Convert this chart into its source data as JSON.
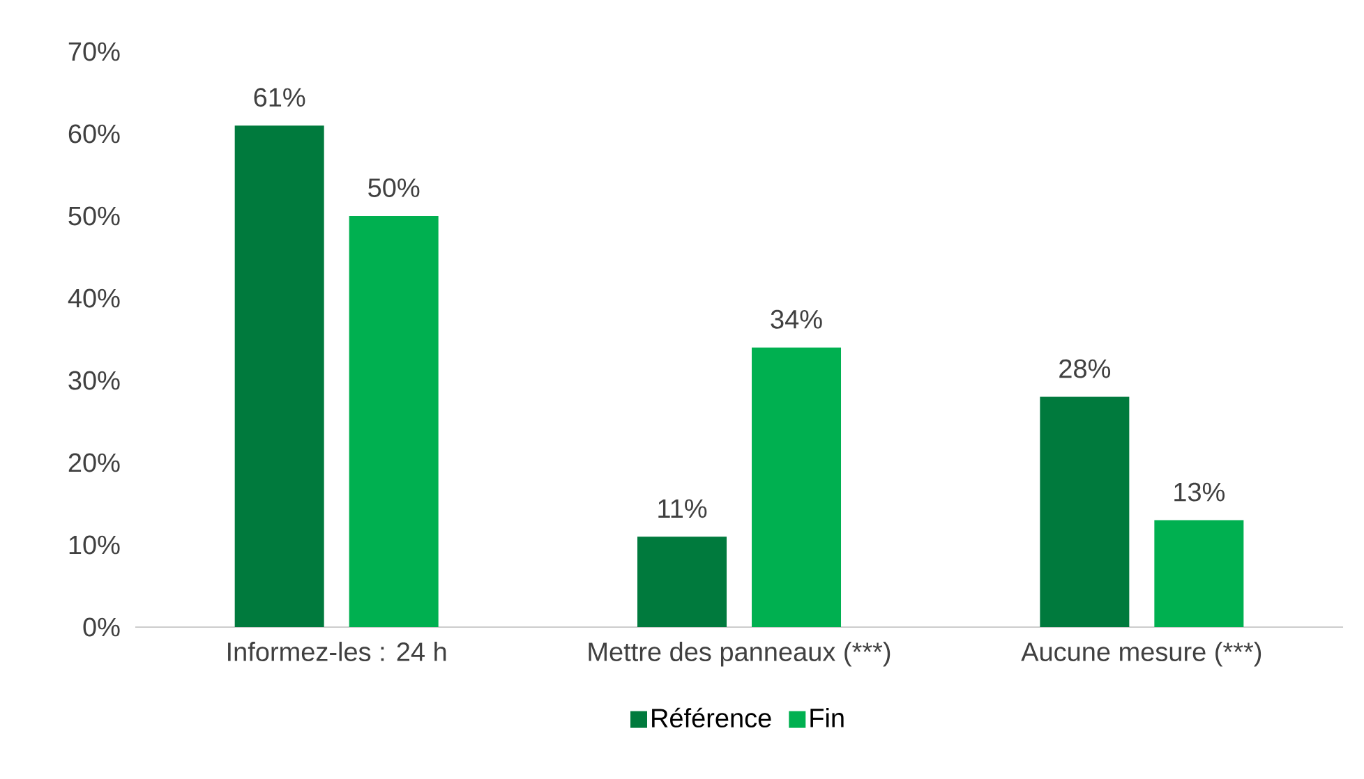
{
  "chart_data": {
    "type": "bar",
    "categories": [
      "Informez-les : 24 h",
      "Mettre des panneaux (***)",
      "Aucune mesure (***)"
    ],
    "series": [
      {
        "name": "Référence",
        "color": "#007a3d",
        "values": [
          61,
          11,
          28
        ],
        "value_labels": [
          "61%",
          "11%",
          "28%"
        ]
      },
      {
        "name": "Fin",
        "color": "#00b050",
        "values": [
          50,
          34,
          13
        ],
        "value_labels": [
          "50%",
          "34%",
          "13%"
        ]
      }
    ],
    "ylim": [
      0,
      70
    ],
    "yticks": [
      {
        "value": 0,
        "label": "0%"
      },
      {
        "value": 10,
        "label": "10%"
      },
      {
        "value": 20,
        "label": "20%"
      },
      {
        "value": 30,
        "label": "30%"
      },
      {
        "value": 40,
        "label": "40%"
      },
      {
        "value": 50,
        "label": "50%"
      },
      {
        "value": 60,
        "label": "60%"
      },
      {
        "value": 70,
        "label": "70%"
      }
    ],
    "legend": "bottom"
  }
}
